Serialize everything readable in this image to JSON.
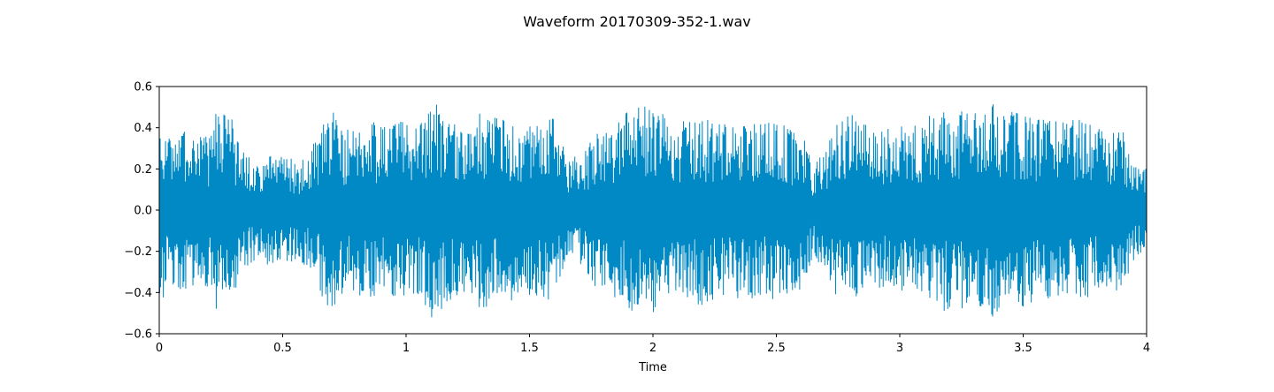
{
  "chart_data": {
    "type": "line",
    "title": "Waveform 20170309-352-1.wav",
    "xlabel": "Time",
    "ylabel": "",
    "xlim": [
      0,
      4
    ],
    "ylim": [
      -0.6,
      0.6
    ],
    "x_ticks": [
      0,
      0.5,
      1,
      1.5,
      2,
      2.5,
      3,
      3.5,
      4
    ],
    "x_tick_labels": [
      "0",
      "0.5",
      "1",
      "1.5",
      "2",
      "2.5",
      "3",
      "3.5",
      "4"
    ],
    "y_ticks": [
      -0.6,
      -0.4,
      -0.2,
      0.0,
      0.2,
      0.4,
      0.6
    ],
    "y_tick_labels": [
      "−0.6",
      "−0.4",
      "−0.2",
      "0.0",
      "0.2",
      "0.4",
      "0.6"
    ],
    "grid": false,
    "legend": "none",
    "series_color": "#0089c4",
    "envelope": {
      "time": [
        0,
        0.02,
        0.05,
        0.1,
        0.15,
        0.2,
        0.23,
        0.25,
        0.28,
        0.3,
        0.33,
        0.35,
        0.4,
        0.45,
        0.5,
        0.55,
        0.6,
        0.65,
        0.67,
        0.7,
        0.75,
        0.8,
        0.85,
        0.9,
        0.95,
        1.0,
        1.05,
        1.1,
        1.13,
        1.15,
        1.2,
        1.25,
        1.3,
        1.35,
        1.4,
        1.45,
        1.5,
        1.55,
        1.6,
        1.65,
        1.7,
        1.75,
        1.8,
        1.85,
        1.9,
        1.95,
        2.0,
        2.05,
        2.1,
        2.15,
        2.2,
        2.25,
        2.3,
        2.35,
        2.4,
        2.45,
        2.5,
        2.55,
        2.6,
        2.65,
        2.7,
        2.75,
        2.8,
        2.85,
        2.9,
        2.95,
        3.0,
        3.05,
        3.1,
        3.15,
        3.2,
        3.25,
        3.3,
        3.35,
        3.4,
        3.45,
        3.5,
        3.55,
        3.6,
        3.65,
        3.7,
        3.75,
        3.8,
        3.85,
        3.9,
        3.95,
        4.0
      ],
      "amplitude": [
        0.46,
        0.42,
        0.38,
        0.4,
        0.4,
        0.38,
        0.5,
        0.45,
        0.5,
        0.42,
        0.3,
        0.28,
        0.26,
        0.27,
        0.26,
        0.25,
        0.27,
        0.38,
        0.5,
        0.5,
        0.4,
        0.42,
        0.48,
        0.4,
        0.42,
        0.44,
        0.42,
        0.52,
        0.55,
        0.45,
        0.44,
        0.42,
        0.48,
        0.46,
        0.44,
        0.44,
        0.42,
        0.42,
        0.45,
        0.26,
        0.26,
        0.35,
        0.42,
        0.44,
        0.48,
        0.52,
        0.5,
        0.46,
        0.42,
        0.46,
        0.46,
        0.44,
        0.44,
        0.44,
        0.45,
        0.42,
        0.44,
        0.4,
        0.4,
        0.22,
        0.3,
        0.44,
        0.48,
        0.44,
        0.44,
        0.4,
        0.42,
        0.42,
        0.45,
        0.48,
        0.5,
        0.5,
        0.48,
        0.52,
        0.52,
        0.48,
        0.48,
        0.46,
        0.44,
        0.44,
        0.46,
        0.44,
        0.4,
        0.38,
        0.4,
        0.24,
        0.2
      ]
    }
  }
}
